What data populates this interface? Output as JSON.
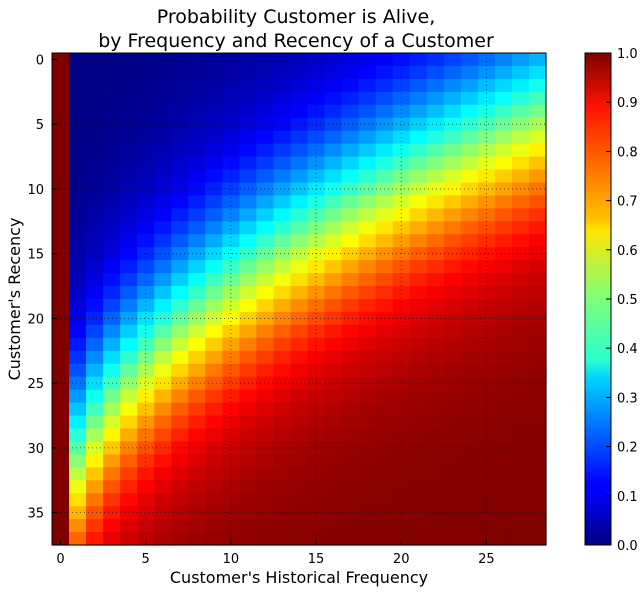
{
  "chart_data": {
    "type": "heatmap",
    "title_lines": [
      "Probability Customer is Alive,",
      "by Frequency and Recency of a Customer"
    ],
    "xlabel": "Customer's Historical Frequency",
    "ylabel": "Customer's Recency",
    "x_range": [
      0,
      28
    ],
    "y_range": [
      0,
      37
    ],
    "x_ticks": [
      "0",
      "5",
      "10",
      "15",
      "20",
      "25"
    ],
    "y_ticks": [
      "0",
      "5",
      "10",
      "15",
      "20",
      "25",
      "30",
      "35"
    ],
    "grid": true,
    "colormap": "jet",
    "colorbar": {
      "range": [
        0.0,
        1.0
      ],
      "ticks": [
        "0.0",
        "0.1",
        "0.2",
        "0.3",
        "0.4",
        "0.5",
        "0.6",
        "0.7",
        "0.8",
        "0.9",
        "1.0"
      ]
    },
    "model": {
      "description": "P(alive) at frequency f, recency r: 1 at f=0; otherwise a logistic falling off with distance from the boundary r = 37 - 6.2*f^0.5",
      "curve": "r_boundary = 37 - 6.2 * sqrt(f)",
      "logistic_slope": 0.2
    }
  }
}
